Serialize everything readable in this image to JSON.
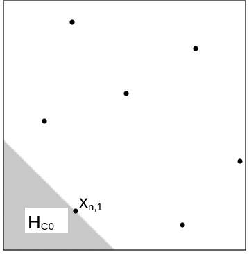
{
  "diagram": {
    "point_label": {
      "main": "x",
      "subscript": "n,1"
    },
    "region_label": {
      "main": "H",
      "subscript": "C0"
    },
    "colors": {
      "frame": "#000000",
      "region_fill": "#c8c8c8",
      "region_edge": "#e8e8e8",
      "point": "#000000",
      "label_background": "#ffffff"
    }
  }
}
